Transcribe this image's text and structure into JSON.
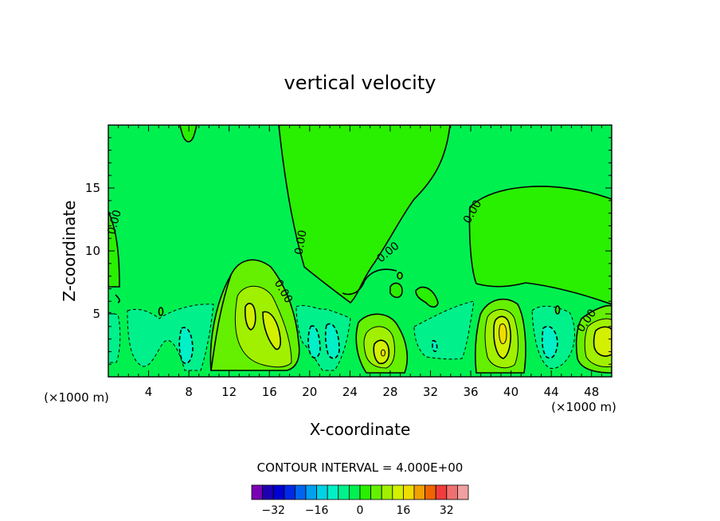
{
  "chart_data": {
    "type": "contour",
    "title": "vertical velocity",
    "xlabel": "X-coordinate",
    "ylabel": "Z-coordinate",
    "x_unit": "(×1000 m)",
    "xlim": [
      0,
      50
    ],
    "ylim": [
      0,
      20
    ],
    "x_ticks": [
      "4",
      "8",
      "12",
      "16",
      "20",
      "24",
      "28",
      "32",
      "36",
      "40",
      "44",
      "48"
    ],
    "y_ticks": [
      "5",
      "10",
      "15"
    ],
    "contour_label": "0.00",
    "contour_interval_text": "CONTOUR INTERVAL = 4.000E+00",
    "levels": [
      -36,
      -32,
      -28,
      -24,
      -20,
      -16,
      -12,
      -8,
      -4,
      0,
      4,
      8,
      12,
      16,
      20,
      24,
      28,
      32,
      36
    ],
    "colorbar": {
      "colors": [
        "#7a00b4",
        "#1e00b4",
        "#0000d2",
        "#0028e6",
        "#0064f0",
        "#00a0f0",
        "#00d2e6",
        "#00f0c8",
        "#00f08c",
        "#00f050",
        "#28f000",
        "#64f000",
        "#a0f000",
        "#d2f000",
        "#f0dc00",
        "#f0a000",
        "#f06400",
        "#f03c3c",
        "#f07070",
        "#f0a0a0"
      ],
      "tick_labels": [
        "-32",
        "-16",
        "0",
        "16",
        "32"
      ],
      "tick_values": [
        -32,
        -16,
        0,
        16,
        32
      ]
    },
    "features": [
      {
        "kind": "updraft",
        "x": 14.5,
        "z": 4.0,
        "peak": 14
      },
      {
        "kind": "updraft",
        "x": 27.5,
        "z": 2.0,
        "peak": 12
      },
      {
        "kind": "updraft",
        "x": 39.0,
        "z": 3.5,
        "peak": 16
      },
      {
        "kind": "updraft",
        "x": 48.5,
        "z": 3.0,
        "peak": 10
      },
      {
        "kind": "downdraft",
        "x": 7.5,
        "z": 2.5,
        "peak": -6
      },
      {
        "kind": "downdraft",
        "x": 21.0,
        "z": 3.0,
        "peak": -6
      },
      {
        "kind": "downdraft",
        "x": 32.5,
        "z": 2.5,
        "peak": -4
      },
      {
        "kind": "downdraft",
        "x": 43.5,
        "z": 3.0,
        "peak": -6
      }
    ]
  }
}
